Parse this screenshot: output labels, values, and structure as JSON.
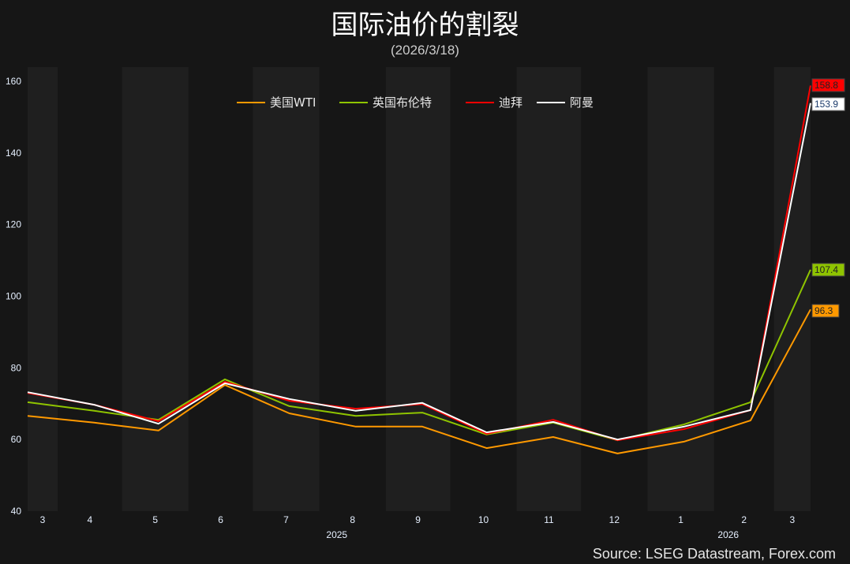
{
  "chart_data": {
    "type": "line",
    "title": "国际油价的割裂",
    "subtitle": "(2026/3/18)",
    "source": "Source: LSEG Datastream, Forex.com",
    "x": [
      "2025-03-18",
      "2025-04-18",
      "2025-05-18",
      "2025-06-18",
      "2025-07-18",
      "2025-08-18",
      "2025-09-18",
      "2025-10-18",
      "2025-11-18",
      "2025-12-18",
      "2026-01-18",
      "2026-02-18",
      "2026-03-18"
    ],
    "xlim": [
      "2025-03-18",
      "2026-03-18"
    ],
    "x_tick_labels": [
      {
        "month": "2025-03",
        "label": "3"
      },
      {
        "month": "2025-04",
        "label": "4"
      },
      {
        "month": "2025-05",
        "label": "5"
      },
      {
        "month": "2025-06",
        "label": "6"
      },
      {
        "month": "2025-07",
        "label": "7"
      },
      {
        "month": "2025-08",
        "label": "8"
      },
      {
        "month": "2025-09",
        "label": "9"
      },
      {
        "month": "2025-10",
        "label": "10"
      },
      {
        "month": "2025-11",
        "label": "11"
      },
      {
        "month": "2025-12",
        "label": "12"
      },
      {
        "month": "2026-01",
        "label": "1"
      },
      {
        "month": "2026-02",
        "label": "2"
      },
      {
        "month": "2026-03",
        "label": "3"
      }
    ],
    "year_labels": [
      {
        "year": "2025",
        "month": "2025-08"
      },
      {
        "year": "2026",
        "month": "2026-02"
      }
    ],
    "ylim": [
      40,
      160
    ],
    "y_ticks": [
      40,
      60,
      80,
      100,
      120,
      140,
      160
    ],
    "grid": false,
    "alternating_month_bands": true,
    "legend_placement": "top-center",
    "series": [
      {
        "name": "美国WTI",
        "color": "#ff9900",
        "values": [
          66.6,
          64.7,
          62.5,
          75.2,
          67.3,
          63.6,
          63.6,
          57.6,
          60.7,
          56.1,
          59.4,
          65.3,
          96.3
        ],
        "end_label": "96.3"
      },
      {
        "name": "英国布伦特",
        "color": "#8fc400",
        "values": [
          70.4,
          68.0,
          65.5,
          76.8,
          69.3,
          66.6,
          67.5,
          61.4,
          64.7,
          59.8,
          64.2,
          70.4,
          107.4
        ],
        "end_label": "107.4"
      },
      {
        "name": "迪拜",
        "color": "#ff0000",
        "values": [
          73.0,
          69.7,
          65.1,
          76.1,
          70.8,
          68.6,
          69.9,
          61.6,
          65.5,
          59.8,
          62.9,
          68.2,
          158.8
        ],
        "end_label": "158.8"
      },
      {
        "name": "阿曼",
        "color": "#ffffff",
        "values": [
          73.2,
          69.7,
          64.4,
          75.7,
          71.3,
          68.0,
          70.2,
          62.0,
          64.9,
          60.0,
          63.6,
          68.2,
          153.9
        ],
        "end_label": "153.9"
      }
    ]
  }
}
